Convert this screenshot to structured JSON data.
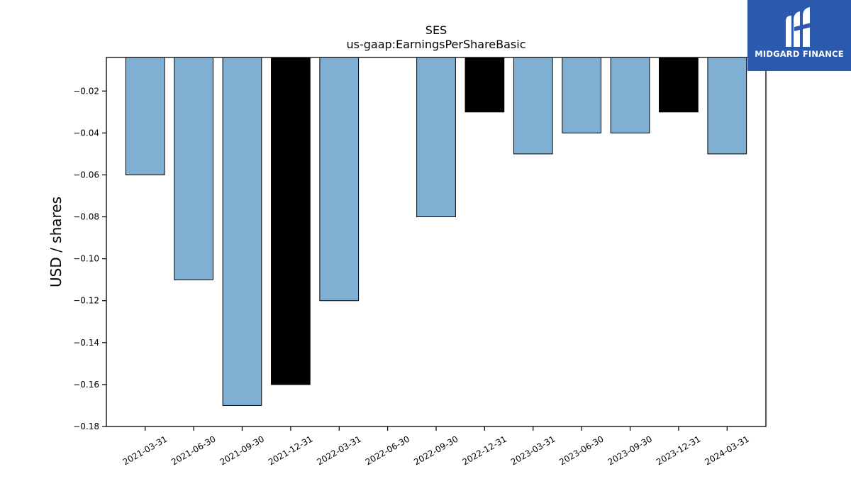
{
  "chart_data": {
    "type": "bar",
    "title": "SES",
    "subtitle": "us-gaap:EarningsPerShareBasic",
    "xlabel": "",
    "ylabel": "USD / shares",
    "categories": [
      "2021-03-31",
      "2021-06-30",
      "2021-09-30",
      "2021-12-31",
      "2022-03-31",
      "2022-06-30",
      "2022-09-30",
      "2022-12-31",
      "2023-03-31",
      "2023-06-30",
      "2023-09-30",
      "2023-12-31",
      "2024-03-31"
    ],
    "values": [
      -0.06,
      -0.11,
      -0.17,
      -0.16,
      -0.12,
      null,
      -0.08,
      -0.03,
      -0.05,
      -0.04,
      -0.04,
      -0.03,
      -0.05
    ],
    "ylim": [
      -0.18,
      -0.004
    ],
    "yticks": [
      -0.02,
      -0.04,
      -0.06,
      -0.08,
      -0.1,
      -0.12,
      -0.14,
      -0.16,
      -0.18
    ],
    "ytick_labels": [
      "−0.02",
      "−0.04",
      "−0.06",
      "−0.08",
      "−0.10",
      "−0.12",
      "−0.14",
      "−0.16",
      "−0.18"
    ],
    "grid": false,
    "colors": {
      "quarter": "#7fb0d4",
      "fiscal_year_end": "#000000",
      "edge": "#000000"
    },
    "highlighted_categories": [
      "2021-12-31",
      "2022-12-31",
      "2023-12-31"
    ]
  },
  "logo": {
    "text": "MIDGARD FINANCE",
    "background": "#2b59ae"
  }
}
